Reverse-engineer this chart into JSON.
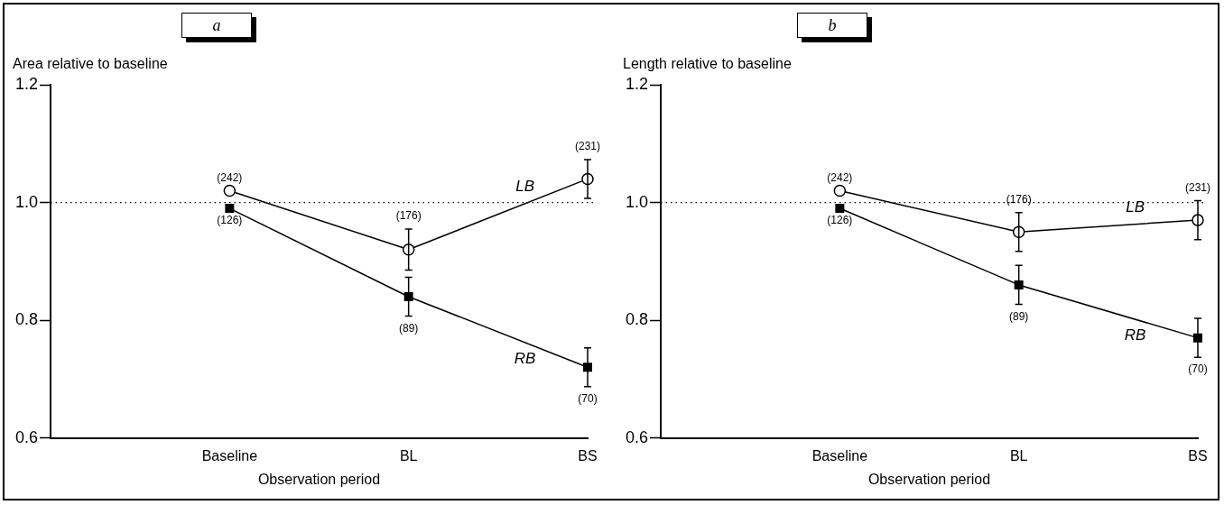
{
  "chart_data": [
    {
      "type": "line",
      "title": "a",
      "xlabel": "Observation period",
      "ylabel": "Area relative to baseline",
      "categories": [
        null,
        "Baseline",
        "BL",
        "BS"
      ],
      "ylim": [
        0.6,
        1.2
      ],
      "yticks": [
        {
          "value": 0.6,
          "label": "0.6"
        },
        {
          "value": 0.8,
          "label": "0.8"
        },
        {
          "value": 1,
          "label": "1.0"
        },
        {
          "value": 1.2,
          "label": "1.2"
        }
      ],
      "grid": false,
      "legend": false,
      "line_style": "solid",
      "series": [
        {
          "name": "LB",
          "color": "#000000",
          "marker": "circle",
          "values": [
            null,
            1.02,
            0.92,
            1.04
          ],
          "errors": [
            null,
            null,
            0.035,
            0.033
          ]
        },
        {
          "name": "RB",
          "color": "#000000",
          "marker": "square",
          "values": [
            null,
            0.99,
            0.84,
            0.72
          ],
          "errors": [
            null,
            null,
            0.033,
            0.033
          ]
        }
      ],
      "ref_lines": [
        {
          "axis": "y",
          "value": 1.0,
          "line_style": "dotted",
          "color": "#000000"
        }
      ],
      "annotations": [
        {
          "text": "(242)",
          "x": "Baseline",
          "y": 1.02
        },
        {
          "text": "(126)",
          "x": "Baseline",
          "y": 0.99
        },
        {
          "text": "(176)",
          "x": "BL",
          "y": 0.92
        },
        {
          "text": "(89)",
          "x": "BL",
          "y": 0.84
        },
        {
          "text": "(231)",
          "x": "BS",
          "y": 1.04
        },
        {
          "text": "(70)",
          "x": "BS",
          "y": 0.72
        }
      ]
    },
    {
      "type": "line",
      "title": "b",
      "xlabel": "Observation period",
      "ylabel": "Length relative to baseline",
      "categories": [
        null,
        "Baseline",
        "BL",
        "BS"
      ],
      "ylim": [
        0.6,
        1.2
      ],
      "yticks": [
        {
          "value": 0.6,
          "label": "0.6"
        },
        {
          "value": 0.8,
          "label": "0.8"
        },
        {
          "value": 1,
          "label": "1.0"
        },
        {
          "value": 1.2,
          "label": "1.2"
        }
      ],
      "grid": false,
      "legend": false,
      "line_style": "solid",
      "series": [
        {
          "name": "LB",
          "color": "#000000",
          "marker": "circle",
          "values": [
            null,
            1.02,
            0.95,
            0.97
          ],
          "errors": [
            null,
            null,
            0.033,
            0.033
          ]
        },
        {
          "name": "RB",
          "color": "#000000",
          "marker": "square",
          "values": [
            null,
            0.99,
            0.86,
            0.77
          ],
          "errors": [
            null,
            null,
            0.033,
            0.033
          ]
        }
      ],
      "ref_lines": [
        {
          "axis": "y",
          "value": 1.0,
          "line_style": "dotted",
          "color": "#000000"
        }
      ],
      "annotations": [
        {
          "text": "(242)",
          "x": "Baseline",
          "y": 1.02
        },
        {
          "text": "(126)",
          "x": "Baseline",
          "y": 0.99
        },
        {
          "text": "(176)",
          "x": "BL",
          "y": 0.95
        },
        {
          "text": "(89)",
          "x": "BL",
          "y": 0.86
        },
        {
          "text": "(231)",
          "x": "BS",
          "y": 0.97
        },
        {
          "text": "(70)",
          "x": "BS",
          "y": 0.77
        }
      ]
    }
  ]
}
